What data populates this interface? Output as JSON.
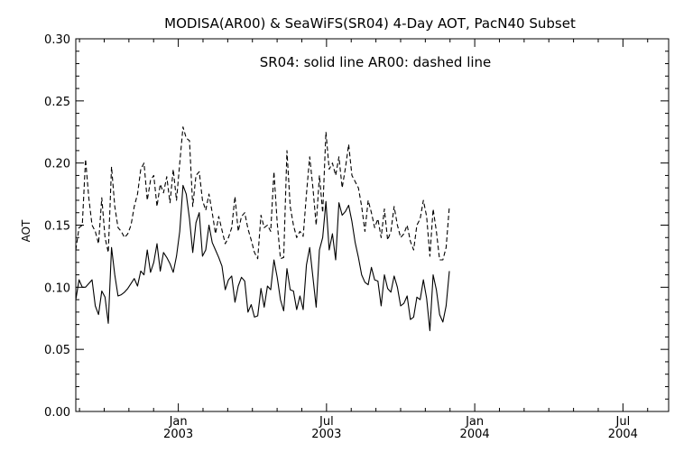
{
  "chart_data": {
    "type": "line",
    "title": "MODISA(AR00) & SeaWiFS(SR04) 4-Day AOT, PacN40 Subset",
    "annotation": "SR04: solid line   AR00: dashed line",
    "xlabel": "",
    "ylabel": "AOT",
    "ylim": [
      0.0,
      0.3
    ],
    "y_ticks": [
      "0.00",
      "0.05",
      "0.10",
      "0.15",
      "0.20",
      "0.25",
      "0.30"
    ],
    "x_unit": "months since Jan 2002",
    "xlim": [
      7.85,
      31.85
    ],
    "x_ticks": [
      {
        "x": 12,
        "label": "Jan",
        "sublabel": "2003"
      },
      {
        "x": 18,
        "label": "Jul",
        "sublabel": "2003"
      },
      {
        "x": 24,
        "label": "Jan",
        "sublabel": "2004"
      },
      {
        "x": 30,
        "label": "Jul",
        "sublabel": "2004"
      }
    ],
    "x_start": 7.85,
    "x_step": 0.1315,
    "grid": false,
    "series": [
      {
        "name": "SR04",
        "style": "solid",
        "values": [
          0.09,
          0.106,
          0.1,
          0.1,
          0.103,
          0.106,
          0.085,
          0.078,
          0.097,
          0.092,
          0.071,
          0.132,
          0.11,
          0.093,
          0.094,
          0.096,
          0.099,
          0.103,
          0.107,
          0.101,
          0.113,
          0.11,
          0.13,
          0.112,
          0.12,
          0.135,
          0.113,
          0.128,
          0.124,
          0.119,
          0.112,
          0.125,
          0.145,
          0.182,
          0.175,
          0.155,
          0.128,
          0.152,
          0.16,
          0.125,
          0.13,
          0.15,
          0.136,
          0.13,
          0.124,
          0.117,
          0.098,
          0.106,
          0.109,
          0.088,
          0.101,
          0.108,
          0.105,
          0.08,
          0.086,
          0.076,
          0.077,
          0.099,
          0.084,
          0.101,
          0.098,
          0.122,
          0.108,
          0.09,
          0.081,
          0.115,
          0.098,
          0.097,
          0.082,
          0.093,
          0.082,
          0.118,
          0.132,
          0.108,
          0.084,
          0.13,
          0.14,
          0.169,
          0.13,
          0.143,
          0.122,
          0.168,
          0.158,
          0.161,
          0.166,
          0.153,
          0.136,
          0.124,
          0.11,
          0.104,
          0.102,
          0.116,
          0.106,
          0.105,
          0.085,
          0.11,
          0.099,
          0.096,
          0.109,
          0.1,
          0.085,
          0.087,
          0.093,
          0.074,
          0.076,
          0.092,
          0.09,
          0.106,
          0.091,
          0.065,
          0.11,
          0.098,
          0.078,
          0.072,
          0.085,
          0.113
        ]
      },
      {
        "name": "AR00",
        "style": "dashed",
        "values": [
          0.13,
          0.148,
          0.15,
          0.203,
          0.172,
          0.15,
          0.145,
          0.135,
          0.172,
          0.14,
          0.128,
          0.197,
          0.165,
          0.148,
          0.145,
          0.14,
          0.143,
          0.15,
          0.165,
          0.175,
          0.195,
          0.2,
          0.17,
          0.186,
          0.19,
          0.165,
          0.183,
          0.176,
          0.189,
          0.168,
          0.195,
          0.17,
          0.2,
          0.229,
          0.22,
          0.218,
          0.165,
          0.19,
          0.193,
          0.17,
          0.162,
          0.175,
          0.16,
          0.143,
          0.157,
          0.146,
          0.135,
          0.14,
          0.148,
          0.173,
          0.145,
          0.157,
          0.16,
          0.147,
          0.138,
          0.128,
          0.123,
          0.158,
          0.148,
          0.15,
          0.145,
          0.193,
          0.152,
          0.123,
          0.124,
          0.21,
          0.165,
          0.15,
          0.14,
          0.145,
          0.141,
          0.175,
          0.205,
          0.18,
          0.15,
          0.19,
          0.16,
          0.225,
          0.195,
          0.2,
          0.19,
          0.205,
          0.18,
          0.196,
          0.215,
          0.19,
          0.185,
          0.18,
          0.165,
          0.145,
          0.17,
          0.16,
          0.148,
          0.155,
          0.14,
          0.163,
          0.138,
          0.145,
          0.165,
          0.15,
          0.14,
          0.143,
          0.15,
          0.137,
          0.13,
          0.15,
          0.155,
          0.17,
          0.157,
          0.125,
          0.163,
          0.145,
          0.122,
          0.122,
          0.132,
          0.165
        ]
      }
    ]
  }
}
